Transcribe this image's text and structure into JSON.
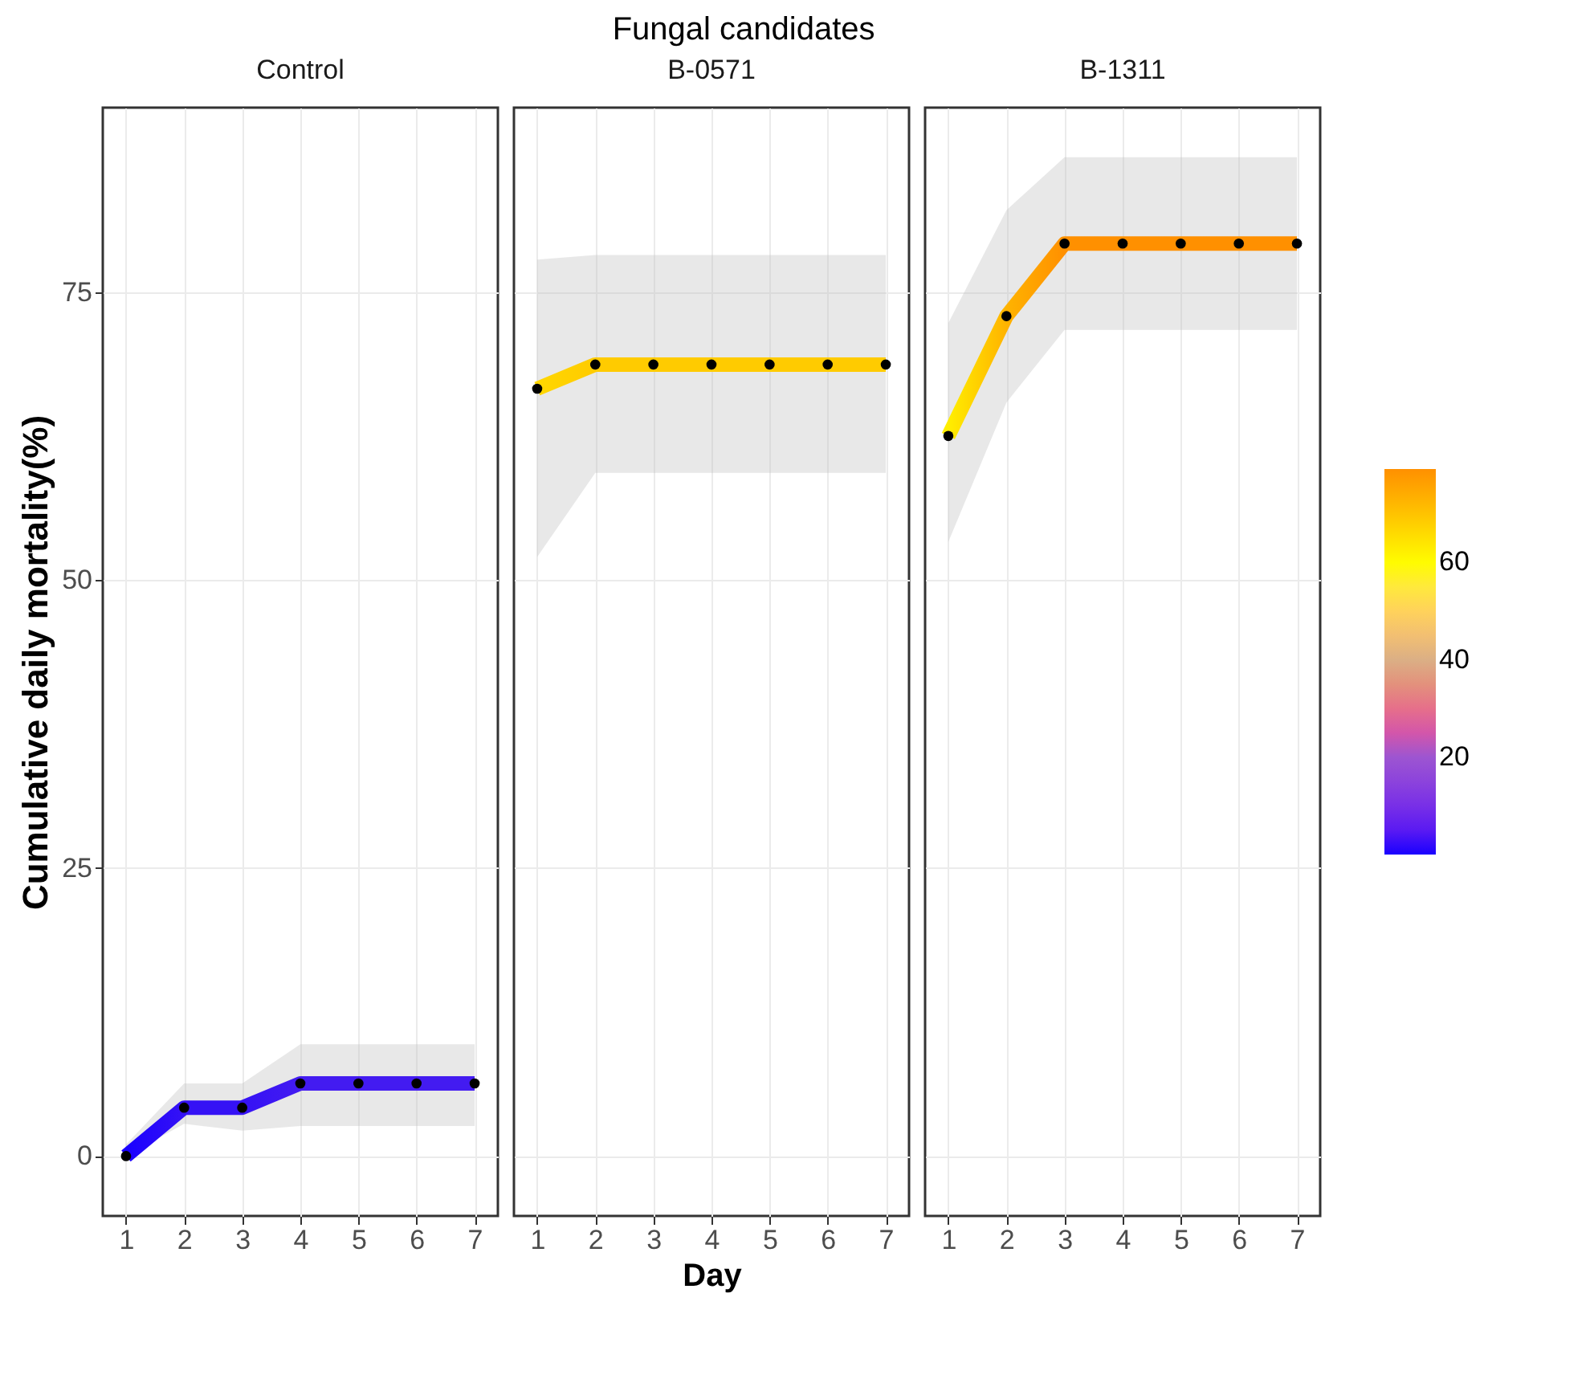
{
  "chart_data": [
    {
      "type": "line",
      "title": "Control",
      "annotations": [
        "Fungal candidates"
      ],
      "ylabel": "Cumulative daily mortality(%)",
      "x": [
        1,
        2,
        3,
        4,
        5,
        6,
        7
      ],
      "xlim": [
        0.6,
        7.4
      ],
      "xticks": [
        1,
        2,
        3,
        4,
        5,
        6,
        7
      ],
      "ylim": [
        -5.2,
        91
      ],
      "yticks": [
        0,
        25,
        50,
        75
      ],
      "grid": true,
      "marker": "circle",
      "series": [
        {
          "values": [
            0,
            4.2,
            4.2,
            6.3,
            6.3,
            6.3,
            6.3
          ],
          "lower": [
            0,
            2.8,
            2.2,
            2.6,
            2.6,
            2.6,
            2.6
          ],
          "upper": [
            1,
            6.3,
            6.3,
            9.7,
            9.7,
            9.7,
            9.7
          ]
        }
      ]
    },
    {
      "type": "line",
      "title": "B-0571",
      "xlabel": "Day",
      "x": [
        1,
        2,
        3,
        4,
        5,
        6,
        7
      ],
      "xlim": [
        0.6,
        7.4
      ],
      "xticks": [
        1,
        2,
        3,
        4,
        5,
        6,
        7
      ],
      "ylim": [
        -5.2,
        91
      ],
      "grid": true,
      "marker": "circle",
      "tick_labels": "x",
      "series": [
        {
          "values": [
            66.6,
            68.7,
            68.7,
            68.7,
            68.7,
            68.7,
            68.7
          ],
          "lower": [
            52,
            59.3,
            59.3,
            59.3,
            59.3,
            59.3,
            59.3
          ],
          "upper": [
            77.8,
            78.2,
            78.2,
            78.2,
            78.2,
            78.2,
            78.2
          ]
        }
      ]
    },
    {
      "type": "line",
      "title": "B-1311",
      "x": [
        1,
        2,
        3,
        4,
        5,
        6,
        7
      ],
      "xlim": [
        0.6,
        7.4
      ],
      "xticks": [
        1,
        2,
        3,
        4,
        5,
        6,
        7
      ],
      "ylim": [
        -5.2,
        91
      ],
      "grid": true,
      "marker": "circle",
      "tick_labels": "x",
      "clim": [
        0,
        79.2
      ],
      "cticks": [
        20,
        40,
        60
      ],
      "series": [
        {
          "values": [
            62.5,
            72.9,
            79.2,
            79.2,
            79.2,
            79.2,
            79.2
          ],
          "lower": [
            53.3,
            65.4,
            71.7,
            71.7,
            71.7,
            71.7,
            71.7
          ],
          "upper": [
            72.3,
            82.1,
            86.7,
            86.7,
            86.7,
            86.7,
            86.7
          ]
        }
      ]
    }
  ]
}
